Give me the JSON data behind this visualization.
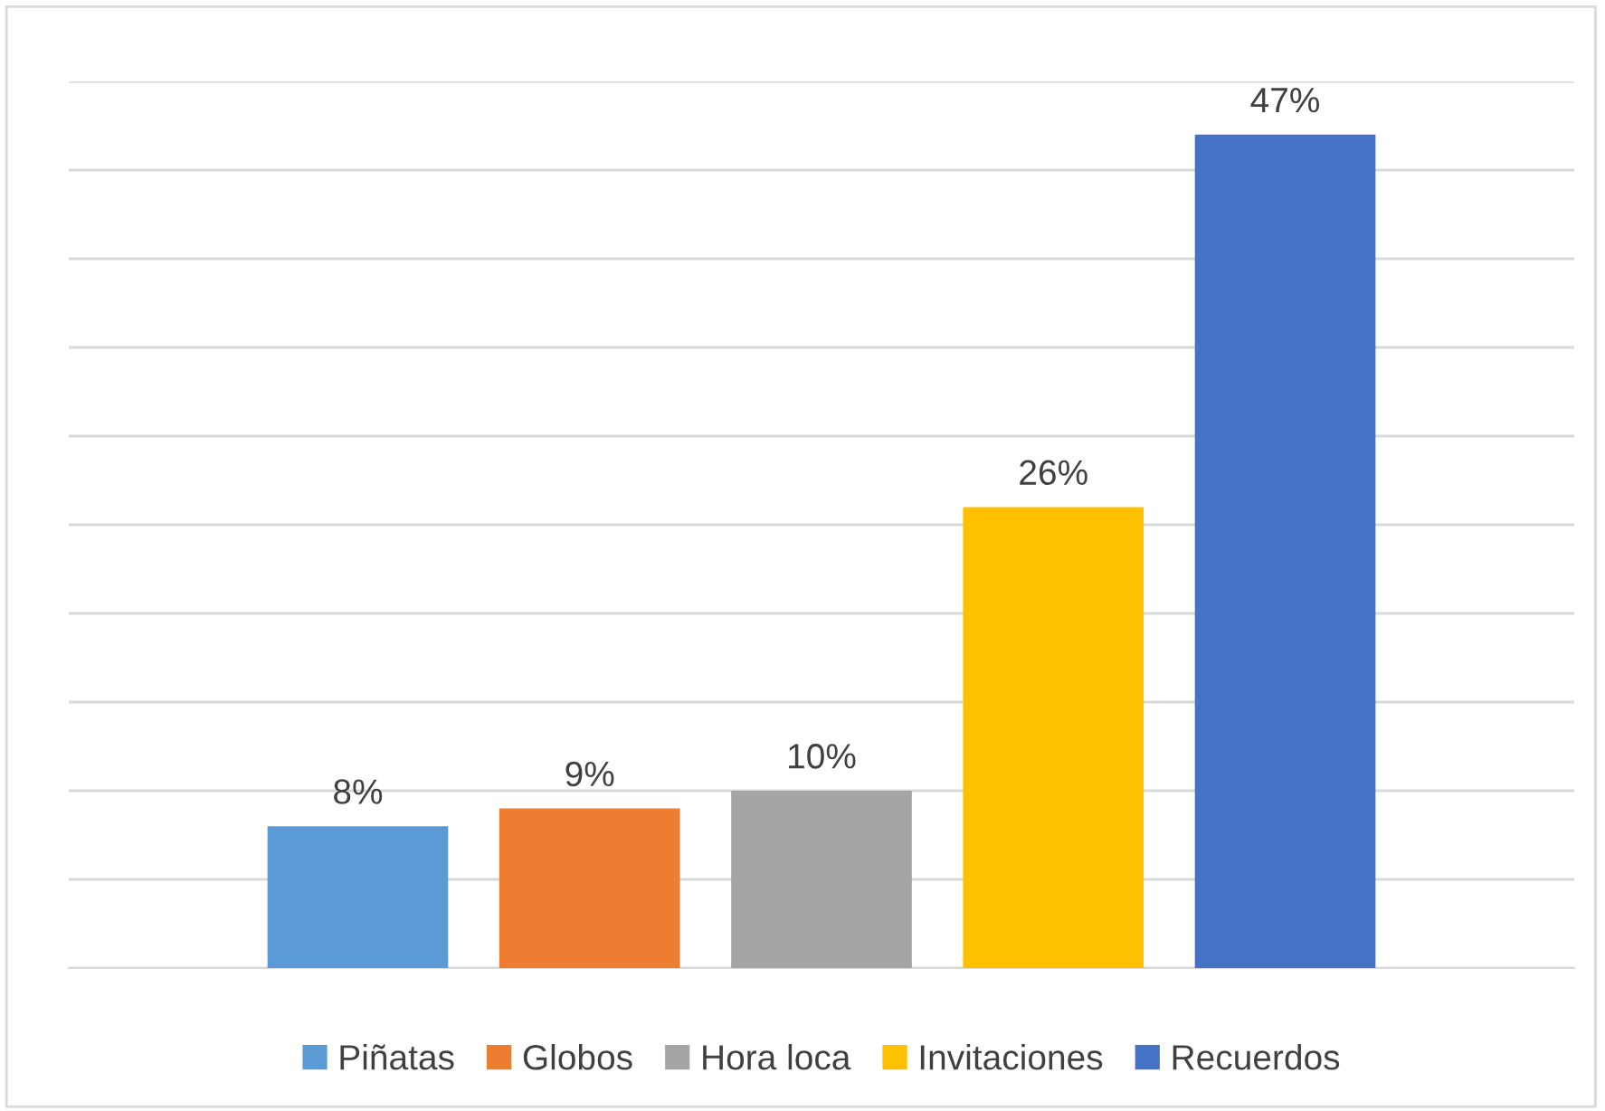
{
  "chart_data": {
    "type": "bar",
    "categories": [
      null
    ],
    "series": [
      {
        "name": "Piñatas",
        "color": "#5b9bd5",
        "values": [
          8
        ],
        "value_labels": [
          "8%"
        ]
      },
      {
        "name": "Globos",
        "color": "#ed7d31",
        "values": [
          9
        ],
        "value_labels": [
          "9%"
        ]
      },
      {
        "name": "Hora loca",
        "color": "#a5a5a5",
        "values": [
          10
        ],
        "value_labels": [
          "10%"
        ]
      },
      {
        "name": "Invitaciones",
        "color": "#ffc000",
        "values": [
          26
        ],
        "value_labels": [
          "26%"
        ]
      },
      {
        "name": "Recuerdos",
        "color": "#4472c4",
        "values": [
          47
        ],
        "value_labels": [
          "47%"
        ]
      }
    ],
    "grid": "y",
    "legend": "bottom",
    "tick_labels": false
  }
}
